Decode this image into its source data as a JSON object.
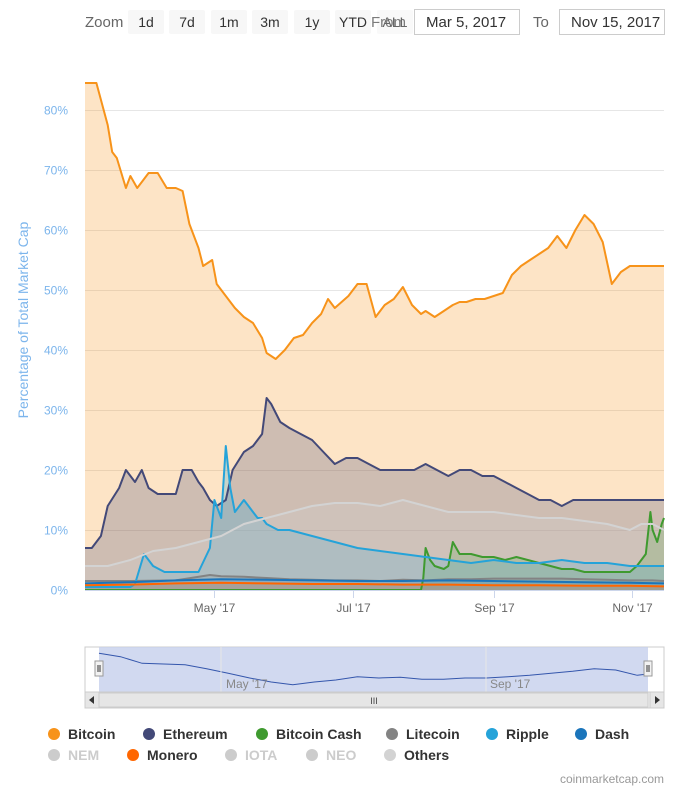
{
  "toolbar": {
    "zoom_label": "Zoom",
    "buttons": [
      "1d",
      "7d",
      "1m",
      "3m",
      "1y",
      "YTD",
      "ALL"
    ],
    "from_label": "From",
    "from_value": "Mar 5, 2017",
    "to_label": "To",
    "to_value": "Nov 15, 2017"
  },
  "credit": "coinmarketcap.com",
  "navigator": {
    "labels": [
      "May '17",
      "Sep '17"
    ],
    "scroll_grip": "III"
  },
  "colors": {
    "bitcoin": "#f7931a",
    "ethereum": "#434978",
    "bitcoin_cash": "#3f9a2f",
    "litecoin": "#838383",
    "ripple": "#25a3d9",
    "dash": "#1b75bb",
    "nem": "#cccccc",
    "monero": "#ff6600",
    "iota": "#cccccc",
    "neo": "#cccccc",
    "others": "#d3d3d3",
    "axis_label": "#7cb5ec",
    "grid": "#e6e6e6"
  },
  "legend": [
    {
      "name": "Bitcoin",
      "color": "#f7931a",
      "visible": true
    },
    {
      "name": "Ethereum",
      "color": "#434978",
      "visible": true
    },
    {
      "name": "Bitcoin Cash",
      "color": "#3f9a2f",
      "visible": true
    },
    {
      "name": "Litecoin",
      "color": "#838383",
      "visible": true
    },
    {
      "name": "Ripple",
      "color": "#25a3d9",
      "visible": true
    },
    {
      "name": "Dash",
      "color": "#1b75bb",
      "visible": true
    },
    {
      "name": "NEM",
      "color": "#cccccc",
      "visible": false
    },
    {
      "name": "Monero",
      "color": "#ff6600",
      "visible": true
    },
    {
      "name": "IOTA",
      "color": "#cccccc",
      "visible": false
    },
    {
      "name": "NEO",
      "color": "#cccccc",
      "visible": false
    },
    {
      "name": "Others",
      "color": "#d3d3d3",
      "visible": true
    }
  ],
  "chart_data": {
    "type": "area",
    "title": "",
    "xlabel": "",
    "ylabel": "Percentage of Total Market Cap",
    "ylim": [
      0,
      90
    ],
    "yticks": [
      0,
      10,
      20,
      30,
      40,
      50,
      60,
      70,
      80
    ],
    "ytick_labels": [
      "0%",
      "10%",
      "20%",
      "30%",
      "40%",
      "50%",
      "60%",
      "70%",
      "80%"
    ],
    "xlim": [
      0,
      255
    ],
    "xticks": [
      {
        "label": "May '17",
        "day": 57
      },
      {
        "label": "Jul '17",
        "day": 118
      },
      {
        "label": "Sep '17",
        "day": 180
      },
      {
        "label": "Nov '17",
        "day": 241
      }
    ],
    "grid": true,
    "x_unit": "days since Mar 5, 2017",
    "series": [
      {
        "name": "Bitcoin",
        "color": "#f7931a",
        "x": [
          0,
          5,
          10,
          12,
          14,
          18,
          20,
          23,
          25,
          28,
          32,
          36,
          40,
          43,
          46,
          50,
          52,
          56,
          58,
          62,
          66,
          70,
          74,
          78,
          80,
          84,
          88,
          92,
          96,
          100,
          104,
          107,
          110,
          113,
          116,
          120,
          124,
          128,
          132,
          136,
          140,
          144,
          148,
          150,
          154,
          158,
          162,
          165,
          168,
          172,
          176,
          180,
          184,
          188,
          192,
          196,
          200,
          204,
          208,
          212,
          216,
          220,
          224,
          228,
          232,
          236,
          240,
          244,
          247,
          250,
          252,
          254,
          255
        ],
        "y": [
          84.5,
          84.5,
          77.5,
          73,
          72,
          67,
          69,
          67,
          68,
          69.5,
          69.5,
          67,
          67,
          66.5,
          61,
          57,
          54,
          55,
          51,
          49,
          47,
          45.5,
          44.5,
          42,
          39.5,
          38.5,
          40,
          42,
          42.5,
          44.5,
          46,
          48.5,
          47,
          48,
          49,
          51,
          51,
          45.5,
          47.5,
          48.5,
          50.5,
          47.5,
          46,
          46.5,
          45.5,
          46.5,
          47.5,
          48,
          48,
          48.5,
          48.5,
          49,
          49.5,
          52.5,
          54,
          55,
          56,
          57,
          59,
          57,
          60,
          62.5,
          61,
          58,
          51,
          53,
          54,
          54,
          54,
          54,
          54,
          54,
          54
        ]
      },
      {
        "name": "Ethereum",
        "color": "#434978",
        "x": [
          0,
          3,
          7,
          10,
          15,
          18,
          22,
          25,
          28,
          32,
          36,
          40,
          43,
          47,
          50,
          52,
          55,
          58,
          62,
          65,
          70,
          74,
          78,
          80,
          82,
          86,
          90,
          95,
          100,
          105,
          110,
          115,
          120,
          125,
          130,
          135,
          140,
          145,
          150,
          155,
          160,
          165,
          170,
          175,
          180,
          185,
          190,
          195,
          200,
          205,
          210,
          215,
          220,
          225,
          230,
          235,
          240,
          245,
          250,
          255
        ],
        "y": [
          7,
          7,
          9,
          14,
          17,
          20,
          18,
          20,
          17,
          16,
          16,
          16,
          20,
          20,
          18,
          17,
          15,
          14,
          15,
          20,
          23,
          24,
          26,
          32,
          31,
          28,
          27,
          26,
          25,
          23,
          21,
          22,
          22,
          21,
          20,
          20,
          20,
          20,
          21,
          20,
          19,
          20,
          20,
          19,
          19,
          18,
          17,
          16,
          15,
          15,
          14,
          15,
          15,
          15,
          15,
          15,
          15,
          15,
          15,
          15
        ]
      },
      {
        "name": "Bitcoin Cash",
        "color": "#3f9a2f",
        "x": [
          0,
          148,
          149,
          150,
          152,
          154,
          158,
          160,
          162,
          165,
          170,
          175,
          180,
          185,
          190,
          195,
          200,
          205,
          210,
          215,
          220,
          225,
          230,
          235,
          240,
          243,
          245,
          247,
          249,
          250,
          252,
          254,
          255
        ],
        "y": [
          0,
          0,
          2,
          7,
          5,
          4,
          3.5,
          4,
          8,
          6,
          6,
          5.5,
          5.5,
          5,
          5.5,
          5,
          4.5,
          4,
          3.5,
          3.5,
          3,
          3,
          3,
          3,
          3,
          4,
          5,
          6,
          13,
          10,
          8,
          11,
          12
        ]
      },
      {
        "name": "Litecoin",
        "color": "#838383",
        "x": [
          0,
          20,
          40,
          55,
          60,
          70,
          80,
          90,
          100,
          110,
          120,
          130,
          140,
          150,
          160,
          170,
          180,
          190,
          200,
          210,
          220,
          230,
          240,
          250,
          255
        ],
        "y": [
          1.5,
          1.5,
          1.6,
          2.5,
          2.3,
          2.2,
          2.0,
          1.8,
          1.7,
          1.6,
          1.6,
          1.5,
          1.7,
          1.6,
          1.8,
          1.8,
          1.9,
          1.9,
          1.9,
          1.9,
          1.8,
          1.7,
          1.6,
          1.6,
          1.5
        ]
      },
      {
        "name": "Ripple",
        "color": "#25a3d9",
        "x": [
          0,
          20,
          22,
          26,
          30,
          35,
          40,
          50,
          55,
          57,
          60,
          62,
          64,
          66,
          68,
          70,
          72,
          74,
          76,
          78,
          80,
          85,
          90,
          100,
          110,
          120,
          130,
          140,
          150,
          160,
          170,
          180,
          190,
          200,
          210,
          220,
          230,
          240,
          250,
          255
        ],
        "y": [
          0.5,
          0.5,
          1,
          6,
          4,
          3,
          3,
          3,
          7,
          15,
          12,
          24,
          17,
          13,
          14,
          15,
          14,
          13,
          12,
          12,
          11,
          10,
          10,
          9,
          8,
          7,
          6.5,
          6,
          5.5,
          5,
          4.5,
          5,
          4.5,
          4.5,
          5,
          4.5,
          4.5,
          4,
          4,
          4
        ]
      },
      {
        "name": "Dash",
        "color": "#1b75bb",
        "x": [
          0,
          20,
          40,
          60,
          80,
          100,
          120,
          140,
          160,
          180,
          200,
          220,
          240,
          255
        ],
        "y": [
          1.1,
          1.3,
          1.6,
          1.8,
          1.7,
          1.6,
          1.5,
          1.5,
          1.6,
          1.5,
          1.4,
          1.3,
          1.2,
          1.1
        ]
      },
      {
        "name": "Monero",
        "color": "#ff6600",
        "x": [
          0,
          20,
          40,
          60,
          80,
          100,
          120,
          140,
          160,
          180,
          200,
          220,
          240,
          255
        ],
        "y": [
          0.8,
          0.9,
          1.1,
          1.2,
          1.1,
          1.0,
          1.0,
          0.9,
          0.9,
          0.8,
          0.8,
          0.7,
          0.7,
          0.6
        ]
      },
      {
        "name": "Others",
        "color": "#d3d3d3",
        "x": [
          0,
          10,
          20,
          30,
          40,
          50,
          60,
          70,
          80,
          90,
          100,
          110,
          120,
          130,
          140,
          150,
          160,
          170,
          180,
          190,
          200,
          210,
          220,
          230,
          240,
          245,
          250,
          255
        ],
        "y": [
          4,
          4,
          5,
          6.5,
          7,
          8,
          9,
          11,
          12,
          13,
          14,
          14.5,
          14.5,
          14,
          15,
          14,
          13,
          13,
          13,
          12.5,
          12,
          12,
          11.5,
          11,
          10,
          11,
          11,
          10
        ]
      }
    ]
  },
  "navigator_data": {
    "x": [
      0,
      10,
      20,
      30,
      40,
      50,
      60,
      70,
      80,
      90,
      100,
      110,
      120,
      130,
      140,
      150,
      160,
      170,
      180,
      190,
      200,
      210,
      220,
      230,
      240,
      250,
      255
    ],
    "y": [
      85,
      80,
      70,
      69,
      68,
      62,
      55,
      48,
      42,
      38,
      42,
      45,
      50,
      48,
      49,
      46,
      46,
      48,
      48,
      50,
      52,
      55,
      58,
      62,
      60,
      52,
      54
    ]
  }
}
